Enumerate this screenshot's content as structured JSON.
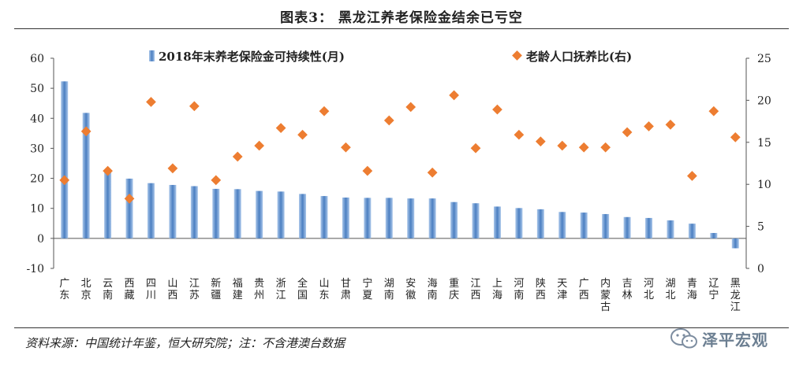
{
  "figure_title": "图表3： 黑龙江养老保险金结余已亏空",
  "source_note": "资料来源：中国统计年鉴，恒大研究院；注：不含港澳台数据",
  "watermark": {
    "text": "泽平宏观",
    "icon": "wechat-logo-icon"
  },
  "colors": {
    "bar": "#4b7fc1",
    "bar_light": "#a9c6ea",
    "marker": "#ed7d31",
    "axis": "#555555"
  },
  "chart_data": {
    "type": "bar",
    "categories": [
      "广东",
      "北京",
      "云南",
      "西藏",
      "四川",
      "山西",
      "江苏",
      "新疆",
      "福建",
      "贵州",
      "浙江",
      "全国",
      "山东",
      "甘肃",
      "宁夏",
      "湖南",
      "安徽",
      "海南",
      "重庆",
      "江西",
      "上海",
      "河南",
      "陕西",
      "天津",
      "广西",
      "内蒙古",
      "吉林",
      "河北",
      "湖北",
      "青海",
      "辽宁",
      "黑龙江"
    ],
    "series": [
      {
        "name": "2018年末养老保险金可持续性(月)",
        "kind": "bar",
        "axis": "left",
        "values": [
          52.3,
          41.8,
          22.8,
          19.9,
          18.4,
          17.8,
          17.4,
          16.5,
          16.4,
          15.8,
          15.6,
          14.8,
          14.1,
          13.6,
          13.5,
          13.5,
          13.3,
          13.3,
          12.1,
          11.7,
          10.6,
          10.1,
          9.7,
          8.8,
          8.6,
          8.1,
          7.1,
          6.8,
          6.0,
          4.9,
          1.8,
          -3.3
        ]
      },
      {
        "name": "老龄人口抚养比(右)",
        "kind": "scatter",
        "axis": "right",
        "values": [
          10.5,
          16.3,
          11.6,
          8.3,
          19.8,
          11.9,
          19.3,
          10.5,
          13.3,
          14.6,
          16.7,
          15.9,
          18.7,
          14.4,
          11.6,
          17.6,
          19.2,
          11.4,
          20.6,
          14.3,
          18.9,
          15.9,
          15.1,
          14.6,
          14.4,
          14.4,
          16.2,
          16.9,
          17.1,
          11.0,
          18.7,
          15.6
        ]
      }
    ],
    "y_left": {
      "min": -10,
      "max": 60,
      "ticks": [
        -10,
        0,
        10,
        20,
        30,
        40,
        50,
        60
      ]
    },
    "y_right": {
      "min": 0,
      "max": 25,
      "ticks": [
        0,
        5,
        10,
        15,
        20,
        25
      ]
    },
    "legend": [
      "2018年末养老保险金可持续性(月)",
      "老龄人口抚养比(右)"
    ],
    "legend_position": "top"
  }
}
